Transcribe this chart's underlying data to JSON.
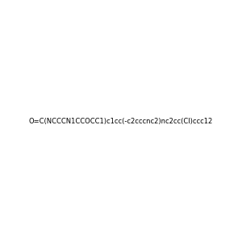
{
  "smiles": "O=C(NCCCN1CCOCC1)c1cc(-c2cccnc2)nc2cc(Cl)ccc12",
  "image_size": 300,
  "background_color": "#e8e8e8",
  "atom_colors": {
    "N": "#0000ff",
    "O": "#ff0000",
    "Cl": "#00aa00"
  }
}
